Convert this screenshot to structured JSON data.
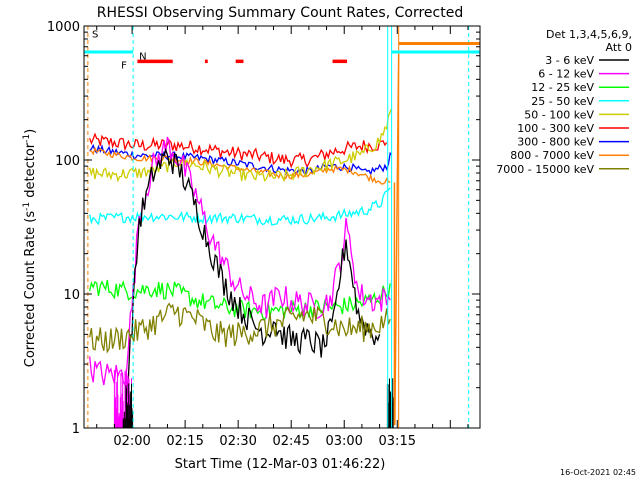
{
  "chart_data": {
    "type": "line",
    "title": "RHESSI Observing Summary Count Rates, Corrected",
    "xlabel": "Start Time (12-Mar-03 01:46:22)",
    "ylabel_main": "Corrected Count Rate (s",
    "ylabel_sup1": "-1",
    "ylabel_mid": " detector",
    "ylabel_sup2": "-1",
    "ylabel_end": ")",
    "yscale": "log",
    "ylim": [
      1,
      1000
    ],
    "xlim_minutes": [
      106.4,
      218.4
    ],
    "x_ticks": [
      {
        "label": "02:00",
        "minutes": 120
      },
      {
        "label": "02:15",
        "minutes": 135
      },
      {
        "label": "02:30",
        "minutes": 150
      },
      {
        "label": "02:45",
        "minutes": 165
      },
      {
        "label": "03:00",
        "minutes": 180
      },
      {
        "label": "03:15",
        "minutes": 195
      }
    ],
    "y_ticks": [
      {
        "label": "1",
        "value": 1
      },
      {
        "label": "10",
        "value": 10
      },
      {
        "label": "100",
        "value": 100
      },
      {
        "label": "1000",
        "value": 1000
      }
    ],
    "legend": {
      "header": [
        "Det 1,3,4,5,6,9,",
        "Att 0"
      ],
      "entries": [
        {
          "label": "3 - 6 keV",
          "color": "#000000"
        },
        {
          "label": "6 - 12 keV",
          "color": "#ff00ff"
        },
        {
          "label": "12 - 25 keV",
          "color": "#00ff00"
        },
        {
          "label": "25 - 50 keV",
          "color": "#00ffff"
        },
        {
          "label": "50 - 100 keV",
          "color": "#cccc00"
        },
        {
          "label": "100 - 300 keV",
          "color": "#ff0000"
        },
        {
          "label": "300 - 800 keV",
          "color": "#0000ff"
        },
        {
          "label": "800 - 7000 keV",
          "color": "#ff8000"
        },
        {
          "label": "7000 - 15000 keV",
          "color": "#808000"
        }
      ]
    },
    "flags": [
      {
        "label": "S",
        "color": "#ff8000"
      },
      {
        "label": "N",
        "color": "#00ffff"
      },
      {
        "label": "F",
        "color": "#ff0000"
      }
    ],
    "series": [
      {
        "name": "100 - 300 keV",
        "color": "#ff0000",
        "noise": 0.05,
        "pts": [
          [
            108,
            140
          ],
          [
            115,
            135
          ],
          [
            122,
            128
          ],
          [
            130,
            130
          ],
          [
            138,
            125
          ],
          [
            146,
            115
          ],
          [
            155,
            108
          ],
          [
            163,
            100
          ],
          [
            170,
            100
          ],
          [
            178,
            118
          ],
          [
            185,
            128
          ],
          [
            190,
            130
          ],
          [
            192,
            135
          ]
        ]
      },
      {
        "name": "300 - 800 keV",
        "color": "#0000ff",
        "noise": 0.03,
        "pts": [
          [
            108,
            122
          ],
          [
            115,
            115
          ],
          [
            122,
            108
          ],
          [
            130,
            108
          ],
          [
            138,
            104
          ],
          [
            146,
            98
          ],
          [
            155,
            90
          ],
          [
            163,
            84
          ],
          [
            170,
            82
          ],
          [
            176,
            90
          ],
          [
            182,
            88
          ],
          [
            186,
            80
          ],
          [
            192,
            90
          ],
          [
            193.3,
            110
          ]
        ]
      },
      {
        "name": "800 - 7000 keV",
        "color": "#ff8000",
        "noise": 0.025,
        "pts": [
          [
            108,
            118
          ],
          [
            115,
            110
          ],
          [
            122,
            103
          ],
          [
            130,
            103
          ],
          [
            138,
            98
          ],
          [
            146,
            90
          ],
          [
            155,
            82
          ],
          [
            163,
            76
          ],
          [
            170,
            78
          ],
          [
            176,
            86
          ],
          [
            182,
            84
          ],
          [
            186,
            76
          ],
          [
            190,
            70
          ],
          [
            193,
            68
          ]
        ]
      },
      {
        "name": "50 - 100 keV",
        "color": "#cccc00",
        "noise": 0.05,
        "pts": [
          [
            108,
            80
          ],
          [
            115,
            78
          ],
          [
            122,
            80
          ],
          [
            128,
            86
          ],
          [
            133,
            98
          ],
          [
            138,
            92
          ],
          [
            146,
            82
          ],
          [
            155,
            75
          ],
          [
            163,
            75
          ],
          [
            170,
            85
          ],
          [
            178,
            96
          ],
          [
            185,
            110
          ],
          [
            190,
            140
          ],
          [
            192,
            180
          ],
          [
            193.3,
            240
          ]
        ]
      },
      {
        "name": "25 - 50 keV",
        "color": "#00ffff",
        "noise": 0.04,
        "pts": [
          [
            108,
            36
          ],
          [
            115,
            37
          ],
          [
            122,
            38
          ],
          [
            130,
            38
          ],
          [
            140,
            37
          ],
          [
            150,
            37
          ],
          [
            158,
            36
          ],
          [
            166,
            36
          ],
          [
            174,
            37
          ],
          [
            180,
            39
          ],
          [
            186,
            42
          ],
          [
            190,
            47
          ],
          [
            192,
            55
          ],
          [
            193,
            62
          ]
        ]
      },
      {
        "name": "12 - 25 keV",
        "color": "#00ff00",
        "noise": 0.07,
        "pts": [
          [
            108,
            11.5
          ],
          [
            114,
            11
          ],
          [
            120,
            10.5
          ],
          [
            126,
            11
          ],
          [
            132,
            10.5
          ],
          [
            138,
            9
          ],
          [
            146,
            8
          ],
          [
            154,
            7.5
          ],
          [
            162,
            7.5
          ],
          [
            170,
            7.8
          ],
          [
            178,
            8
          ],
          [
            184,
            8.5
          ],
          [
            188,
            9
          ],
          [
            192,
            10.5
          ],
          [
            193,
            12
          ]
        ]
      },
      {
        "name": "6 - 12 keV",
        "color": "#ff00ff",
        "noise": 0.1,
        "pts": [
          [
            108,
            2.8
          ],
          [
            112,
            2.5
          ],
          [
            118,
            2.5
          ],
          [
            120.3,
            10
          ],
          [
            122,
            40
          ],
          [
            126,
            90
          ],
          [
            130,
            130
          ],
          [
            134,
            95
          ],
          [
            138,
            55
          ],
          [
            142,
            28
          ],
          [
            146,
            17
          ],
          [
            150,
            11
          ],
          [
            154,
            9
          ],
          [
            158,
            8
          ],
          [
            160,
            9
          ],
          [
            162,
            10
          ],
          [
            164,
            9
          ],
          [
            168,
            8.5
          ],
          [
            172,
            8
          ],
          [
            176,
            9
          ],
          [
            179,
            18
          ],
          [
            180.5,
            30
          ],
          [
            182,
            22
          ],
          [
            184,
            10
          ],
          [
            188,
            9
          ],
          [
            193,
            9
          ]
        ]
      },
      {
        "name": "3 - 6 keV",
        "color": "#000000",
        "noise": 0.1,
        "pts": [
          [
            118,
            1.2
          ],
          [
            120.3,
            8
          ],
          [
            122,
            35
          ],
          [
            126,
            80
          ],
          [
            130,
            110
          ],
          [
            134,
            80
          ],
          [
            138,
            45
          ],
          [
            142,
            22
          ],
          [
            146,
            12
          ],
          [
            150,
            8
          ],
          [
            154,
            6
          ],
          [
            158,
            5
          ],
          [
            160,
            6.5
          ],
          [
            162,
            5
          ],
          [
            166,
            4.5
          ],
          [
            170,
            4.5
          ],
          [
            174,
            4
          ],
          [
            177,
            6
          ],
          [
            179,
            15
          ],
          [
            180.5,
            25
          ],
          [
            182,
            15
          ],
          [
            184,
            7
          ],
          [
            188,
            5
          ],
          [
            190,
            5
          ]
        ]
      },
      {
        "name": "7000 - 15000 keV",
        "color": "#808000",
        "noise": 0.1,
        "pts": [
          [
            108,
            4.5
          ],
          [
            114,
            4.5
          ],
          [
            120,
            5
          ],
          [
            126,
            6
          ],
          [
            132,
            7.5
          ],
          [
            138,
            6.5
          ],
          [
            144,
            5
          ],
          [
            150,
            5
          ],
          [
            156,
            5.5
          ],
          [
            162,
            6
          ],
          [
            168,
            7
          ],
          [
            174,
            6.5
          ],
          [
            180,
            5.5
          ],
          [
            186,
            5.5
          ],
          [
            190,
            6
          ],
          [
            193,
            6.5
          ]
        ]
      }
    ]
  },
  "timestamp": "16-Oct-2021 02:45"
}
